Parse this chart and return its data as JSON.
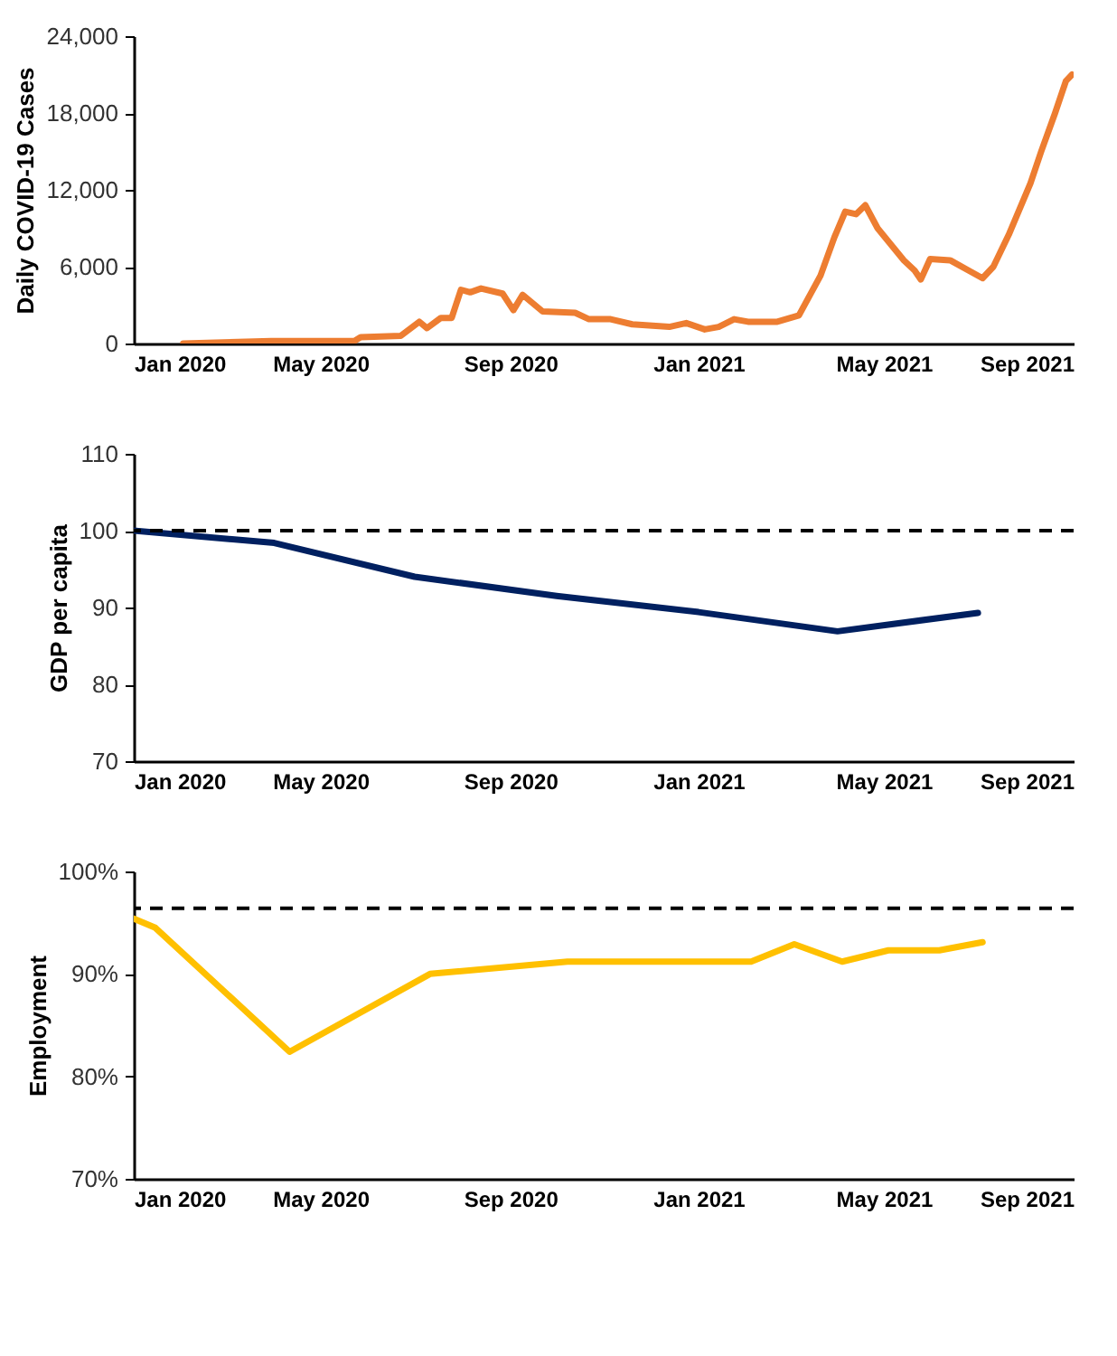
{
  "chart_data": [
    {
      "type": "line",
      "ylabel": "Daily COVID-19  Cases",
      "grid": false,
      "xlim": [
        "2020-01-01",
        "2021-09-01"
      ],
      "xticks": [
        {
          "value": "2020-01-01",
          "label": "Jan 2020"
        },
        {
          "value": "2020-05-01",
          "label": "May 2020"
        },
        {
          "value": "2020-09-01",
          "label": "Sep 2020"
        },
        {
          "value": "2021-01-01",
          "label": "Jan 2021"
        },
        {
          "value": "2021-05-01",
          "label": "May 2021"
        },
        {
          "value": "2021-09-01",
          "label": "Sep 2021"
        }
      ],
      "ylim": [
        0,
        24000
      ],
      "yticks": [
        {
          "value": 0,
          "label": "0"
        },
        {
          "value": 6000,
          "label": "6,000"
        },
        {
          "value": 12000,
          "label": "12,000"
        },
        {
          "value": 18000,
          "label": "18,000"
        },
        {
          "value": 24000,
          "label": "24,000"
        }
      ],
      "series": [
        {
          "color": "#ed7d31",
          "x": [
            "2020-02-02",
            "2020-03-30",
            "2020-05-23",
            "2020-05-27",
            "2020-06-22",
            "2020-07-04",
            "2020-07-09",
            "2020-07-18",
            "2020-07-25",
            "2020-07-31",
            "2020-08-06",
            "2020-08-13",
            "2020-08-27",
            "2020-09-03",
            "2020-09-09",
            "2020-09-22",
            "2020-10-13",
            "2020-10-22",
            "2020-11-05",
            "2020-11-19",
            "2020-12-13",
            "2020-12-24",
            "2021-01-05",
            "2021-01-14",
            "2021-01-24",
            "2021-02-02",
            "2021-02-21",
            "2021-03-07",
            "2021-03-21",
            "2021-03-30",
            "2021-04-06",
            "2021-04-13",
            "2021-04-19",
            "2021-04-27",
            "2021-05-14",
            "2021-05-21",
            "2021-05-25",
            "2021-05-31",
            "2021-06-13",
            "2021-06-25",
            "2021-07-04",
            "2021-07-11",
            "2021-07-21",
            "2021-08-04",
            "2021-08-11",
            "2021-08-20",
            "2021-08-27",
            "2021-08-31"
          ],
          "values": [
            0,
            200,
            200,
            500,
            600,
            1700,
            1200,
            2000,
            2000,
            4200,
            4000,
            4300,
            3900,
            2600,
            3800,
            2500,
            2400,
            1900,
            1900,
            1500,
            1300,
            1600,
            1100,
            1300,
            1900,
            1700,
            1700,
            2200,
            5300,
            8300,
            10300,
            10100,
            10800,
            9000,
            6500,
            5700,
            5000,
            6600,
            6500,
            5700,
            5100,
            6000,
            8500,
            12500,
            15000,
            18000,
            20500,
            21000
          ]
        }
      ]
    },
    {
      "type": "line",
      "ylabel": "GDP per capita",
      "grid": false,
      "xlim": [
        "2020-01-01",
        "2021-09-01"
      ],
      "xticks": [
        {
          "value": "2020-01-01",
          "label": "Jan 2020"
        },
        {
          "value": "2020-05-01",
          "label": "May 2020"
        },
        {
          "value": "2020-09-01",
          "label": "Sep 2020"
        },
        {
          "value": "2021-01-01",
          "label": "Jan 2021"
        },
        {
          "value": "2021-05-01",
          "label": "May 2021"
        },
        {
          "value": "2021-09-01",
          "label": "Sep 2021"
        }
      ],
      "ylim": [
        70,
        110
      ],
      "yticks": [
        70,
        80,
        90,
        100,
        110
      ],
      "ref_lines": [
        {
          "axis": "y",
          "value": 100,
          "color": "#000000",
          "line_style": "dashed"
        }
      ],
      "series": [
        {
          "color": "#002060",
          "x": [
            "2020-01-01",
            "2020-04-01",
            "2020-07-01",
            "2020-10-01",
            "2021-01-01",
            "2021-04-01",
            "2021-07-01"
          ],
          "values": [
            100,
            98.4,
            94.0,
            91.5,
            89.4,
            86.9,
            89.3
          ]
        }
      ]
    },
    {
      "type": "line",
      "ylabel": "Employment",
      "grid": false,
      "xlim": [
        "2020-01-01",
        "2021-09-01"
      ],
      "xticks": [
        {
          "value": "2020-01-01",
          "label": "Jan 2020"
        },
        {
          "value": "2020-05-01",
          "label": "May 2020"
        },
        {
          "value": "2020-09-01",
          "label": "Sep 2020"
        },
        {
          "value": "2021-01-01",
          "label": "Jan 2021"
        },
        {
          "value": "2021-05-01",
          "label": "May 2021"
        },
        {
          "value": "2021-09-01",
          "label": "Sep 2021"
        }
      ],
      "ylim": [
        70,
        100
      ],
      "yticks": [
        {
          "value": 70,
          "label": "70%"
        },
        {
          "value": 80,
          "label": "80%"
        },
        {
          "value": 90,
          "label": "90%"
        },
        {
          "value": 100,
          "label": "100%"
        }
      ],
      "ref_lines": [
        {
          "axis": "y",
          "value": 96.4,
          "color": "#000000",
          "line_style": "dashed"
        }
      ],
      "series": [
        {
          "color": "#ffc000",
          "x": [
            "2020-01-01",
            "2020-01-15",
            "2020-04-11",
            "2020-07-11",
            "2020-10-08",
            "2021-02-04",
            "2021-03-04",
            "2021-04-04",
            "2021-05-04",
            "2021-06-06",
            "2021-07-04"
          ],
          "values": [
            95.4,
            94.5,
            82.4,
            90.0,
            91.2,
            91.2,
            92.9,
            91.2,
            92.3,
            92.3,
            93.1
          ]
        }
      ]
    }
  ]
}
